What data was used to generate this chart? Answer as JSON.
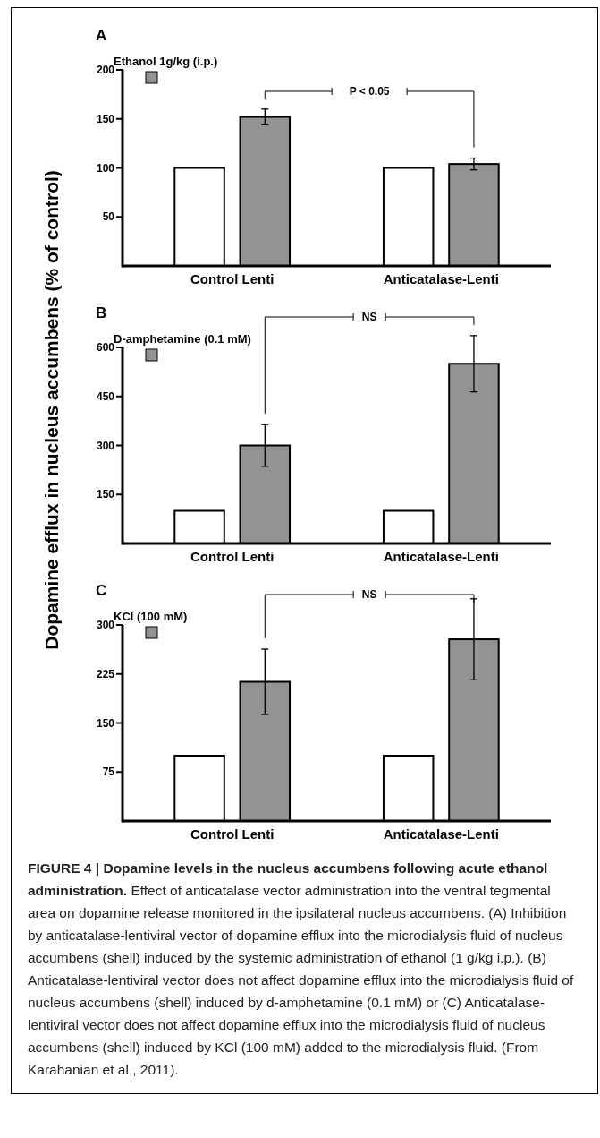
{
  "chart_data": [
    {
      "type": "bar",
      "title": "A",
      "categories": [
        "Control Lenti",
        "Anticatalase-Lenti"
      ],
      "series": [
        {
          "color": "#ffffff",
          "values": [
            100,
            100
          ]
        },
        {
          "name": "Ethanol 1g/kg (i.p.)",
          "color": "#939393",
          "values": [
            152,
            104
          ],
          "errors": [
            8,
            6
          ]
        }
      ],
      "ylim": [
        0,
        200
      ],
      "yticks": [
        50,
        100,
        150,
        200
      ],
      "legend": "top left",
      "annotations": [
        "P < 0.05"
      ]
    },
    {
      "type": "bar",
      "title": "B",
      "ylabel": "Dopamine efflux in nucleus accumbens (% of control)",
      "categories": [
        "Control Lenti",
        "Anticatalase-Lenti"
      ],
      "series": [
        {
          "color": "#ffffff",
          "values": [
            100,
            100
          ]
        },
        {
          "name": "D-amphetamine (0.1 mM)",
          "color": "#939393",
          "values": [
            300,
            550
          ],
          "errors": [
            64,
            86
          ]
        }
      ],
      "ylim": [
        0,
        600
      ],
      "yticks": [
        150,
        300,
        450,
        600
      ],
      "legend": "top left",
      "annotations": [
        "NS"
      ]
    },
    {
      "type": "bar",
      "title": "C",
      "categories": [
        "Control Lenti",
        "Anticatalase-Lenti"
      ],
      "series": [
        {
          "color": "#ffffff",
          "values": [
            100,
            100
          ]
        },
        {
          "name": "KCl (100 mM)",
          "color": "#939393",
          "values": [
            213,
            278
          ],
          "errors": [
            50,
            62
          ]
        }
      ],
      "ylim": [
        0,
        300
      ],
      "yticks": [
        75,
        150,
        225,
        300
      ],
      "legend": "top left",
      "annotations": [
        "NS"
      ]
    },
    {
      "type": "other",
      "annotations": [
        "FIGURE 4 | Dopamine levels in the nucleus accumbens following acute ethanol administration.",
        "Effect of anticatalase vector administration into the ventral tegmental area on dopamine release monitored in the ipsilateral nucleus accumbens. (A) Inhibition by anticatalase-lentiviral vector of dopamine efflux into the microdialysis fluid of nucleus accumbens (shell) induced by the systemic administration of ethanol (1 g/kg i.p.). (B) Anticatalase-lentiviral vector does not affect dopamine efflux into the microdialysis fluid of nucleus accumbens (shell) induced by d-amphetamine (0.1 mM) or (C) Anticatalase-lentiviral vector does not affect dopamine efflux into the microdialysis fluid of nucleus accumbens (shell) induced by KCl (100 mM) added to the microdialysis fluid. (From Karahanian et al., 2011)."
      ]
    }
  ]
}
